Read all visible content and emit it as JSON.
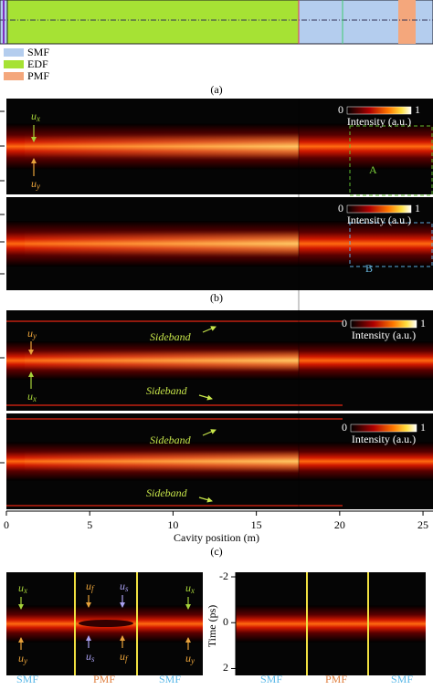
{
  "panel_a": {
    "legend": [
      "SMF",
      "EDF",
      "PMF"
    ],
    "caption": "(a)"
  },
  "panel_b": {
    "caption": "(b)",
    "colorbar": {
      "min": 0,
      "max": 1,
      "title": "Intensity (a.u.)"
    },
    "ux": {
      "base": "u",
      "sub": "x"
    },
    "uy": {
      "base": "u",
      "sub": "y"
    },
    "box_labels": [
      "A",
      "B"
    ]
  },
  "panel_c": {
    "caption": "(c)",
    "colorbar": {
      "min": 0,
      "max": 1,
      "title": "Intensity (a.u.)"
    },
    "ux": {
      "base": "u",
      "sub": "x"
    },
    "uy": {
      "base": "u",
      "sub": "y"
    },
    "sideband_labels": [
      "Sideband",
      "Sideband",
      "Sideband",
      "Sideband"
    ],
    "x_axis": {
      "label": "Cavity position (m)",
      "lim": [
        0,
        25.6
      ],
      "ticks": [
        0,
        5,
        10,
        15,
        20,
        25
      ]
    }
  },
  "panel_d": {
    "left": {
      "annotations": [
        {
          "base": "u",
          "sub": "x"
        },
        {
          "base": "u",
          "sub": "y"
        },
        {
          "base": "u",
          "sub": "f"
        },
        {
          "base": "u",
          "sub": "s"
        },
        {
          "base": "u",
          "sub": "s"
        },
        {
          "base": "u",
          "sub": "f"
        },
        {
          "base": "u",
          "sub": "x"
        },
        {
          "base": "u",
          "sub": "y"
        }
      ],
      "fibers": [
        "SMF",
        "PMF",
        "SMF"
      ]
    },
    "right": {
      "fibers": [
        "SMF",
        "PMF",
        "SMF"
      ],
      "y_axis": {
        "label": "Time (ps)",
        "lim": [
          -2.2,
          2.3
        ],
        "ticks": [
          -2,
          0,
          2
        ]
      }
    }
  }
}
